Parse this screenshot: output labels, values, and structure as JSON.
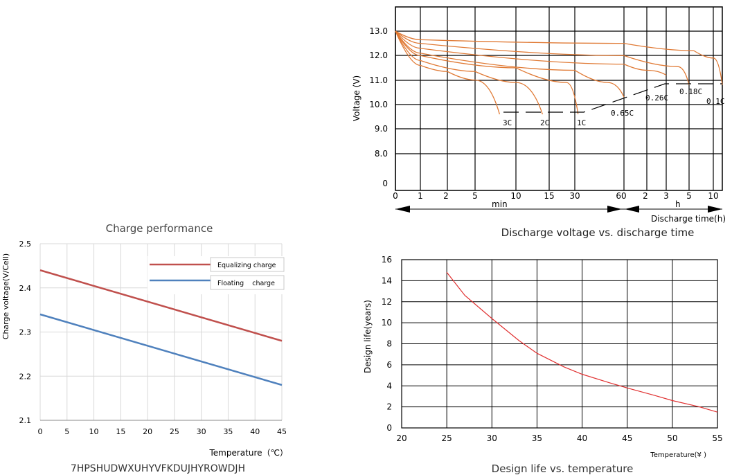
{
  "chart_data": [
    {
      "id": "discharge",
      "type": "line",
      "title": "Discharge voltage vs. discharge time",
      "ylabel": "Voltage (V)",
      "xlabel": "Discharge time(h)",
      "y_ticks": [
        "13.0",
        "12.0",
        "11.0",
        "10.0",
        "9.0",
        "8.0",
        "0"
      ],
      "x_ticks": [
        "0",
        "1",
        "2",
        "5",
        "10",
        "15",
        "30",
        "60",
        "2",
        "3",
        "5",
        "10"
      ],
      "x_unit_labels": [
        "min",
        "h"
      ],
      "series": [
        {
          "name": "3C",
          "points": [
            [
              0,
              13.0
            ],
            [
              1,
              11.6
            ],
            [
              2,
              11.35
            ],
            [
              5,
              11.0
            ],
            [
              8,
              9.6
            ]
          ]
        },
        {
          "name": "2C",
          "points": [
            [
              0,
              13.0
            ],
            [
              1,
              11.8
            ],
            [
              5,
              11.35
            ],
            [
              10,
              10.9
            ],
            [
              14,
              9.6
            ]
          ]
        },
        {
          "name": "1C",
          "points": [
            [
              0,
              13.0
            ],
            [
              1,
              12.0
            ],
            [
              10,
              11.5
            ],
            [
              25,
              10.9
            ],
            [
              32,
              9.6
            ]
          ]
        },
        {
          "name": "0.65C",
          "points": [
            [
              0,
              13.0
            ],
            [
              1,
              12.1
            ],
            [
              30,
              11.4
            ],
            [
              50,
              10.9
            ],
            [
              60,
              10.3
            ]
          ]
        },
        {
          "name": "0.26C",
          "points": [
            [
              0,
              13.0
            ],
            [
              1,
              12.3
            ],
            [
              60,
              11.65
            ],
            [
              120,
              11.4
            ],
            [
              180,
              11.2
            ]
          ]
        },
        {
          "name": "0.18C",
          "points": [
            [
              0,
              13.0
            ],
            [
              1,
              12.5
            ],
            [
              60,
              12.0
            ],
            [
              240,
              11.55
            ],
            [
              300,
              10.8
            ]
          ]
        },
        {
          "name": "0.1C",
          "points": [
            [
              0,
              13.0
            ],
            [
              1,
              12.65
            ],
            [
              60,
              12.5
            ],
            [
              360,
              12.2
            ],
            [
              600,
              11.9
            ],
            [
              720,
              10.8
            ]
          ]
        }
      ],
      "cutoff_labels": [
        "3C",
        "2C",
        "1C",
        "0.65C",
        "0.26C",
        "0.18C",
        "0.1C"
      ],
      "color": "#e07a35"
    },
    {
      "id": "charge",
      "type": "line",
      "title": "Charge performance",
      "ylabel": "Charge voltage(V/Cell)",
      "xlabel": "Temperature（℃）",
      "x": [
        0,
        45
      ],
      "xlim": [
        0,
        45
      ],
      "ylim": [
        2.1,
        2.5
      ],
      "x_ticks": [
        "0",
        "5",
        "10",
        "15",
        "20",
        "25",
        "30",
        "35",
        "40",
        "45"
      ],
      "y_ticks": [
        "2.1",
        "2.2",
        "2.3",
        "2.4",
        "2.5"
      ],
      "series": [
        {
          "name": "Equalizing charge",
          "values": [
            2.44,
            2.28
          ],
          "color": "#c0504d"
        },
        {
          "name": "Floating    charge",
          "values": [
            2.34,
            2.18
          ],
          "color": "#4f81bd"
        }
      ],
      "caption": "7HPSHUDWXUHYVFKDUJHYROWDJH"
    },
    {
      "id": "life",
      "type": "line",
      "title": "Design life vs. temperature",
      "ylabel": "Design life(years)",
      "xlabel": "Temperature(¥ )",
      "xlim": [
        20,
        55
      ],
      "ylim": [
        0,
        16
      ],
      "x_ticks": [
        "20",
        "25",
        "30",
        "35",
        "40",
        "45",
        "50",
        "55"
      ],
      "y_ticks": [
        "0",
        "2",
        "4",
        "6",
        "8",
        "10",
        "12",
        "14",
        "16"
      ],
      "series": [
        {
          "name": "",
          "x": [
            25,
            27,
            30,
            33,
            35,
            38,
            40,
            43,
            45,
            48,
            50,
            53,
            55
          ],
          "values": [
            14.8,
            12.6,
            10.4,
            8.3,
            7.1,
            5.8,
            5.1,
            4.3,
            3.8,
            3.1,
            2.6,
            2.0,
            1.5
          ],
          "color": "#e03030"
        }
      ]
    }
  ]
}
